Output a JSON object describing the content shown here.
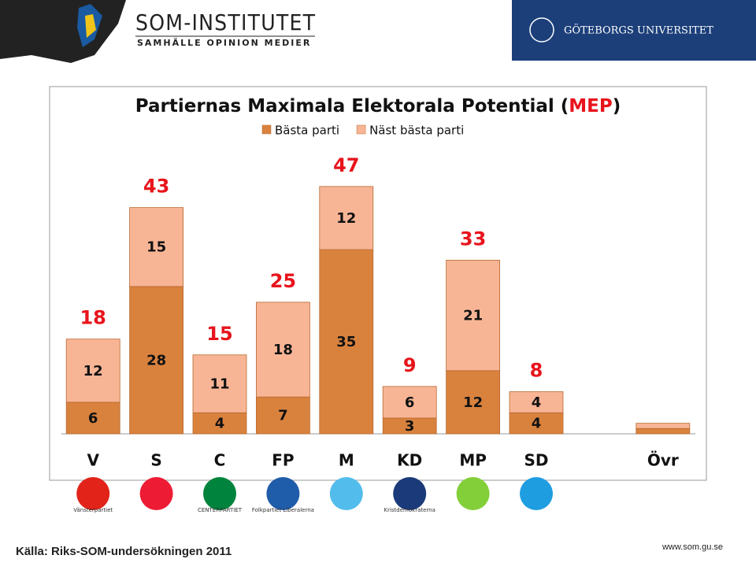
{
  "header": {
    "institute": "SOM-INSTITUTET",
    "tagline": "SAMHÄLLE OPINION MEDIER",
    "university": "GÖTEBORGS UNIVERSITET"
  },
  "chart_data": {
    "type": "stacked-bar",
    "title_parts": [
      "Partiernas Maximala Elektorala Potential (",
      "MEP",
      ")"
    ],
    "categories": [
      "V",
      "S",
      "C",
      "FP",
      "M",
      "KD",
      "MP",
      "SD",
      null,
      "Övr"
    ],
    "series": [
      {
        "name": "Bästa parti",
        "color": "#d9823e",
        "values": [
          6,
          28,
          4,
          7,
          35,
          3,
          12,
          4,
          null,
          1
        ]
      },
      {
        "name": "Näst bästa parti",
        "color": "#f8b595",
        "values": [
          12,
          15,
          11,
          18,
          12,
          6,
          21,
          4,
          null,
          1
        ]
      }
    ],
    "totals": [
      18,
      43,
      15,
      25,
      47,
      9,
      33,
      8,
      null,
      null
    ],
    "total_color": "#e8141c",
    "ylim": [
      0,
      60
    ],
    "legend": "top"
  },
  "logo_captions": {
    "V": "Vänsterpartiet",
    "C": "CENTERPARTIET",
    "FP": "Folkpartiet Liberalerna",
    "KD": "Kristdemokraterna"
  },
  "footer": {
    "source": "Källa: Riks-SOM-undersökningen 2011",
    "url": "www.som.gu.se"
  }
}
